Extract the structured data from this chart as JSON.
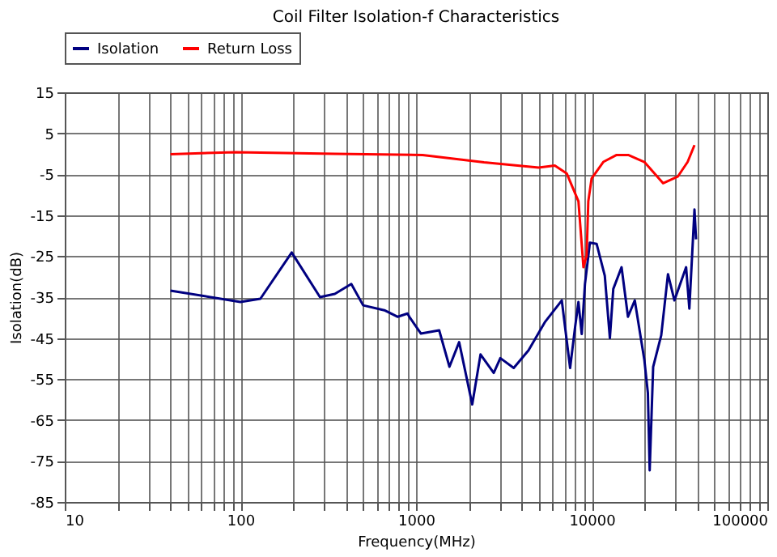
{
  "chart_data": {
    "type": "line",
    "title": "Coil Filter Isolation-f Characteristics",
    "xlabel": "Frequency(MHz)",
    "ylabel": "Isolation(dB)",
    "log": "x",
    "grid": true,
    "legend": "top",
    "line_style": "solid",
    "xlim": [
      10,
      100000
    ],
    "xticks": [
      10,
      {
        "value": 20,
        "label": null
      },
      {
        "value": 30,
        "label": null
      },
      {
        "value": 40,
        "label": null
      },
      {
        "value": 50,
        "label": null
      },
      {
        "value": 60,
        "label": null
      },
      {
        "value": 70,
        "label": null
      },
      {
        "value": 80,
        "label": null
      },
      {
        "value": 90,
        "label": null
      },
      100,
      {
        "value": 200,
        "label": null
      },
      {
        "value": 300,
        "label": null
      },
      {
        "value": 400,
        "label": null
      },
      {
        "value": 500,
        "label": null
      },
      {
        "value": 600,
        "label": null
      },
      {
        "value": 700,
        "label": null
      },
      {
        "value": 800,
        "label": null
      },
      {
        "value": 900,
        "label": null
      },
      1000,
      {
        "value": 2000,
        "label": null
      },
      {
        "value": 3000,
        "label": null
      },
      {
        "value": 4000,
        "label": null
      },
      {
        "value": 5000,
        "label": null
      },
      {
        "value": 6000,
        "label": null
      },
      {
        "value": 7000,
        "label": null
      },
      {
        "value": 8000,
        "label": null
      },
      {
        "value": 9000,
        "label": null
      },
      10000,
      {
        "value": 20000,
        "label": null
      },
      {
        "value": 30000,
        "label": null
      },
      {
        "value": 40000,
        "label": null
      },
      {
        "value": 50000,
        "label": null
      },
      {
        "value": 60000,
        "label": null
      },
      {
        "value": 70000,
        "label": null
      },
      {
        "value": 80000,
        "label": null
      },
      {
        "value": 90000,
        "label": null
      },
      100000
    ],
    "ylim": [
      -85,
      15
    ],
    "yticks": [
      -85,
      -75,
      -65,
      -55,
      -45,
      -35,
      -25,
      -15,
      -5,
      5,
      15
    ],
    "series": [
      {
        "name": "Isolation",
        "color": "#000080",
        "x": [
          40,
          100,
          130,
          196,
          284,
          345,
          428,
          500,
          660,
          787,
          895,
          916,
          1067,
          1355,
          1550,
          1760,
          2090,
          2330,
          2770,
          3020,
          3600,
          4370,
          5440,
          6760,
          7540,
          8050,
          8410,
          8780,
          9160,
          9770,
          10670,
          11880,
          12700,
          13280,
          14800,
          16100,
          17600,
          19950,
          20900,
          21400,
          22400,
          24900,
          27200,
          29600,
          34500,
          36000,
          38500,
          39300
        ],
        "values": [
          -33.4,
          -36.2,
          -35.4,
          -24.1,
          -35,
          -34.2,
          -31.8,
          -37,
          -38.2,
          -39.8,
          -39,
          -39.8,
          -43.9,
          -43.1,
          -52,
          -46,
          -61.2,
          -49,
          -53.5,
          -49.9,
          -52.3,
          -48,
          -41,
          -35.8,
          -52.3,
          -42.3,
          -36.2,
          -44,
          -31.8,
          -21.7,
          -22,
          -29.8,
          -45,
          -33,
          -27.7,
          -39.8,
          -35.8,
          -50.3,
          -58.4,
          -77.3,
          -52,
          -44.3,
          -29.4,
          -35.8,
          -27.7,
          -37.8,
          -13.6,
          -20.9
        ]
      },
      {
        "name": "Return Loss",
        "color": "#ff0000",
        "x": [
          40,
          94,
          345,
          1090,
          2440,
          4990,
          6170,
          7210,
          8410,
          8980,
          9360,
          9570,
          10000,
          11650,
          13870,
          16150,
          19950,
          25500,
          30900,
          35200,
          38500
        ],
        "values": [
          -0.1,
          0.4,
          0,
          -0.3,
          -2.1,
          -3.4,
          -2.9,
          -4.8,
          -11.6,
          -27.7,
          -24.9,
          -11.6,
          -6,
          -2,
          -0.3,
          -0.3,
          -2,
          -7.2,
          -5.6,
          -2,
          2.1
        ]
      }
    ]
  }
}
